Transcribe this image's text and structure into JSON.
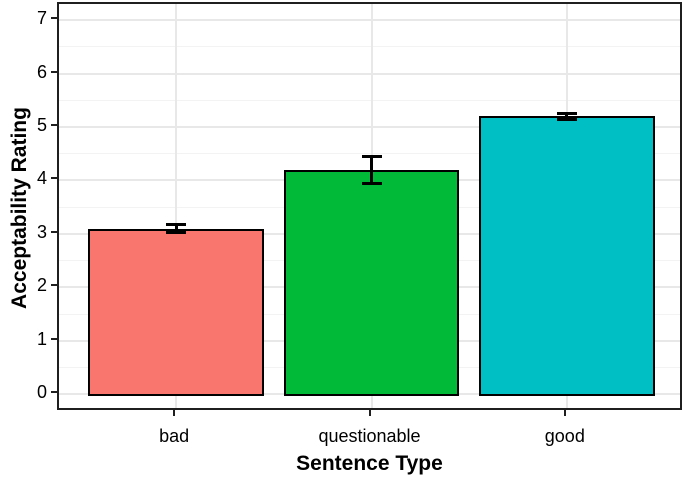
{
  "figure": {
    "background_color": "#ffffff",
    "panel_border_color": "#1f1f1f",
    "major_grid_color": "#e8e8e8",
    "minor_grid_color": "#f3f3f3",
    "text_color": "#000000"
  },
  "chart_data": {
    "type": "bar",
    "title": "",
    "xlabel": "Sentence Type",
    "ylabel": "Acceptability Rating",
    "categories": [
      "bad",
      "questionable",
      "good"
    ],
    "values": [
      3.1,
      4.2,
      5.2
    ],
    "error_bars": [
      0.07,
      0.25,
      0.06
    ],
    "bar_colors": [
      "#F8766D",
      "#00BA38",
      "#00BFC4"
    ],
    "bar_border_color": "#000000",
    "error_bar_color": "#000000",
    "ylim": [
      0,
      7
    ],
    "yticks": [
      0,
      1,
      2,
      3,
      4,
      5,
      6,
      7
    ],
    "y_minor_ticks": [
      0.5,
      1.5,
      2.5,
      3.5,
      4.5,
      5.5,
      6.5
    ],
    "grid": "horizontal major + minor, vertical major at category centers",
    "legend": "none"
  }
}
